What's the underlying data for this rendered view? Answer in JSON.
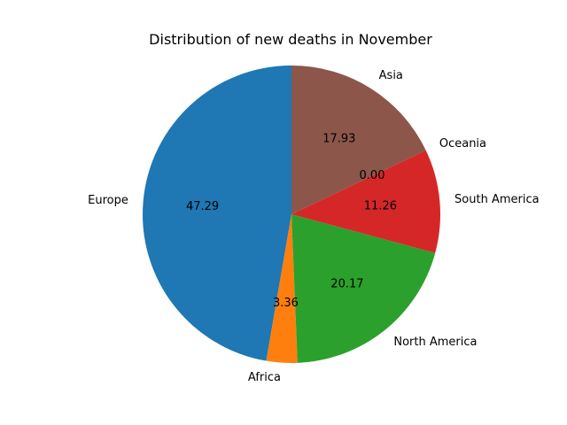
{
  "chart_data": {
    "type": "pie",
    "title": "Distribution of new deaths in November",
    "start_angle_deg": 90,
    "direction": "counterclockwise",
    "value_format": "%.2f",
    "slices": [
      {
        "label": "Europe",
        "value": 47.29,
        "value_label": "47.29",
        "color": "#1f77b4"
      },
      {
        "label": "Africa",
        "value": 3.36,
        "value_label": "3.36",
        "color": "#ff7f0e"
      },
      {
        "label": "North America",
        "value": 20.17,
        "value_label": "20.17",
        "color": "#2ca02c"
      },
      {
        "label": "South America",
        "value": 11.26,
        "value_label": "11.26",
        "color": "#d62728"
      },
      {
        "label": "Oceania",
        "value": 0.0,
        "value_label": "0.00",
        "color": "#9467bd"
      },
      {
        "label": "Asia",
        "value": 17.93,
        "value_label": "17.93",
        "color": "#8c564b"
      }
    ]
  }
}
